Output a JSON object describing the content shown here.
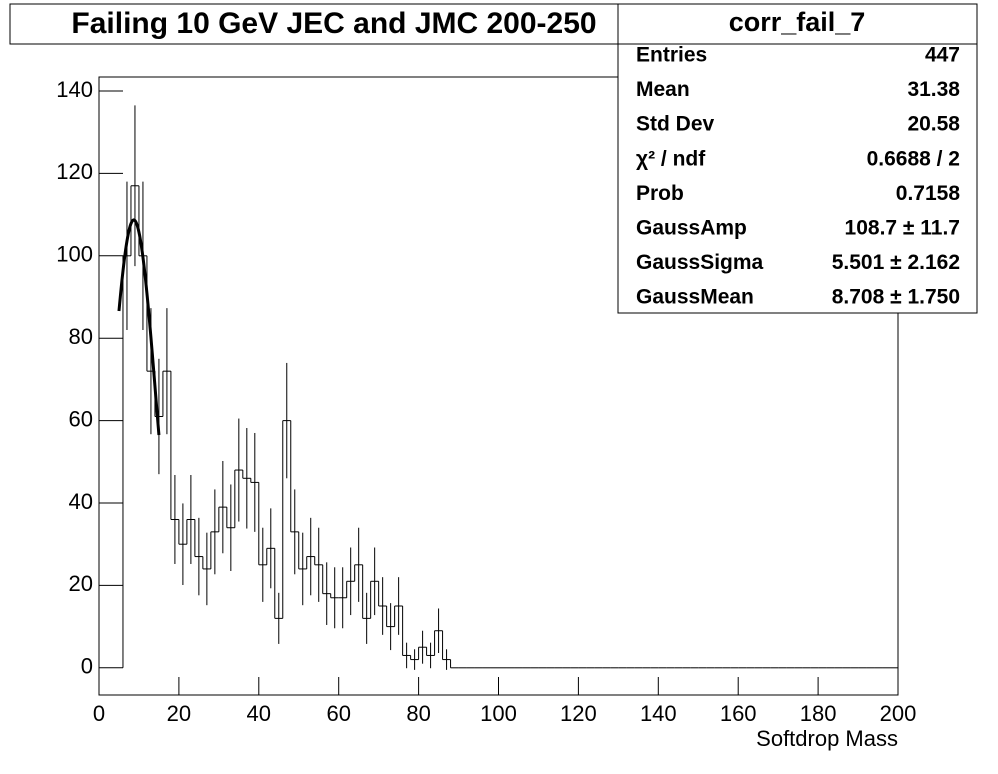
{
  "chart_data": {
    "type": "histogram",
    "title": "Failing 10 GeV JEC and JMC 200-250",
    "x_label": "Softdrop Mass",
    "bins": [
      6,
      8,
      10,
      12,
      14,
      16,
      18,
      20,
      22,
      24,
      26,
      28,
      30,
      32,
      34,
      36,
      38,
      40,
      42,
      44,
      46,
      48,
      50,
      52,
      54,
      56,
      58,
      60,
      62,
      64,
      66,
      68,
      70,
      72,
      74,
      76,
      78,
      80,
      82,
      84,
      86,
      88,
      90,
      92,
      94,
      96,
      98,
      100,
      102,
      104,
      106,
      108,
      110,
      112,
      114,
      116,
      118,
      120,
      122,
      124,
      126,
      128,
      130,
      132,
      134,
      136,
      138,
      140,
      142,
      144,
      146,
      148,
      150,
      152,
      154,
      156,
      158,
      160,
      162,
      164,
      166,
      168,
      170,
      172,
      174,
      176,
      178,
      180,
      182,
      184,
      186,
      188,
      190,
      192,
      194,
      196,
      198,
      200
    ],
    "values": [
      100,
      117,
      100,
      72,
      61,
      72,
      36,
      30,
      36,
      27,
      24,
      33,
      39,
      34,
      48,
      46,
      45,
      25,
      29,
      12,
      60,
      33,
      24,
      27,
      25,
      18,
      17,
      17,
      21,
      25,
      12,
      21,
      15,
      10,
      15,
      3,
      2,
      5,
      3,
      9,
      2,
      0,
      0,
      0,
      0,
      0,
      0,
      0,
      0,
      0,
      0,
      0,
      0,
      0,
      0,
      0,
      0,
      0,
      0,
      0,
      0,
      0,
      0,
      0,
      0,
      0,
      0,
      0,
      0,
      0,
      0,
      0,
      0,
      0,
      0,
      0,
      0,
      0,
      0,
      0,
      0,
      0,
      0,
      0,
      0,
      0,
      0,
      0,
      0,
      0,
      0,
      0,
      0,
      0,
      0,
      0,
      0
    ],
    "errors": [
      18,
      19.5,
      18,
      15.3,
      14,
      15.3,
      10.8,
      9.9,
      10.8,
      9.4,
      8.8,
      10.3,
      11.2,
      10.5,
      12.5,
      12.2,
      12,
      9,
      9.7,
      6.2,
      14,
      10.3,
      8.8,
      9.4,
      9,
      7.6,
      7.4,
      7.4,
      8.2,
      9,
      6.2,
      8.2,
      7,
      5.7,
      7,
      3.1,
      2.5,
      4,
      3.1,
      5.4,
      2.5,
      0,
      0,
      0,
      0,
      0,
      0,
      0,
      0,
      0,
      0,
      0,
      0,
      0,
      0,
      0,
      0,
      0,
      0,
      0,
      0,
      0,
      0,
      0,
      0,
      0,
      0,
      0,
      0,
      0,
      0,
      0,
      0,
      0,
      0,
      0,
      0,
      0,
      0,
      0,
      0,
      0,
      0,
      0,
      0,
      0,
      0,
      0,
      0,
      0,
      0,
      0,
      0,
      0,
      0,
      0,
      0
    ],
    "color": "#000000",
    "fit": {
      "amplitude": 108.7,
      "mean": 8.708,
      "sigma": 5.501,
      "range": [
        5,
        15
      ]
    },
    "xlim": [
      0,
      200
    ],
    "xticks": [
      0,
      20,
      40,
      60,
      80,
      100,
      120,
      140,
      160,
      180,
      200
    ],
    "ylim": [
      -6.6,
      143.4
    ],
    "yticks": [
      0,
      20,
      40,
      60,
      80,
      100,
      120,
      140
    ],
    "stats": {
      "name": "corr_fail_7",
      "rows": [
        [
          "Entries",
          "447"
        ],
        [
          "Mean",
          "31.38"
        ],
        [
          "Std Dev",
          "20.58"
        ],
        [
          "χ² / ndf",
          "0.6688 / 2"
        ],
        [
          "Prob",
          "0.7158"
        ],
        [
          "GaussAmp",
          "108.7 ± 11.7"
        ],
        [
          "GaussSigma",
          "5.501 ± 2.162"
        ],
        [
          "GaussMean",
          "8.708 ± 1.750"
        ]
      ]
    }
  }
}
